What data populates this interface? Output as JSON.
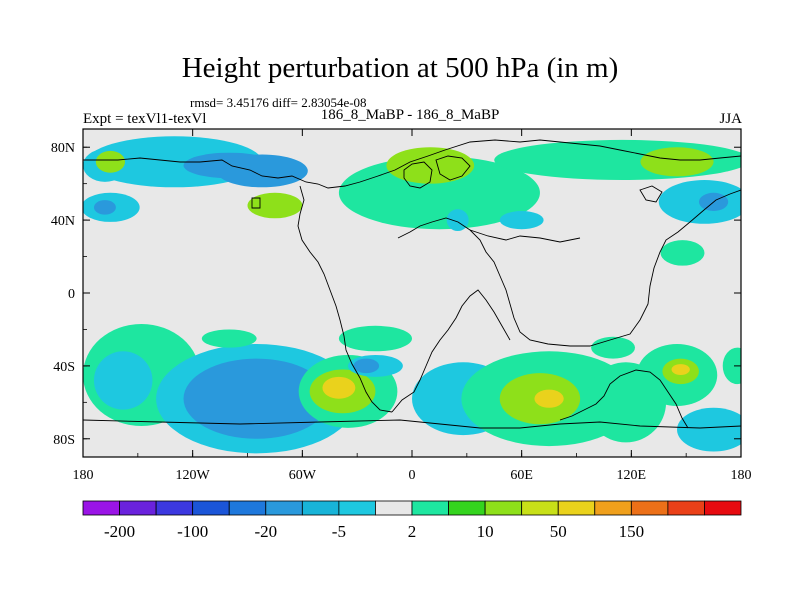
{
  "chart_data": {
    "type": "heatmap",
    "title": "Height perturbation at 500 hPa (in m)",
    "stats_text": "rmsd= 3.45176 diff= 2.83054e-08",
    "left_label": "Expt = texVl1-texVl",
    "center_label": "186_8_MaBP - 186_8_MaBP",
    "right_label": "JJA",
    "x_ticks": [
      "180",
      "120W",
      "60W",
      "0",
      "60E",
      "120E",
      "180"
    ],
    "x_tick_values": [
      -180,
      -120,
      -60,
      0,
      60,
      120,
      180
    ],
    "y_ticks": [
      "80N",
      "40N",
      "0",
      "40S",
      "80S"
    ],
    "y_tick_values": [
      80,
      40,
      0,
      -40,
      -80
    ],
    "xlim": [
      -180,
      180
    ],
    "ylim": [
      -90,
      90
    ],
    "colorbar": {
      "colors": [
        "#9a14e6",
        "#6a22dd",
        "#3c38e0",
        "#1b55d8",
        "#1e78dc",
        "#2a99dc",
        "#18b4d8",
        "#1ec8e0",
        "#e8e8e8",
        "#1ee6a0",
        "#34d41e",
        "#8ee01a",
        "#c8e018",
        "#ead21c",
        "#f0a01c",
        "#ec7018",
        "#ea4018",
        "#e60a10"
      ],
      "labels": [
        "-200",
        "-100",
        "-20",
        "-5",
        "2",
        "10",
        "50",
        "150"
      ],
      "label_after_box": [
        1,
        3,
        5,
        7,
        9,
        11,
        13,
        15
      ]
    },
    "regions": [
      {
        "lon": -130,
        "lat": 72,
        "rx": 48,
        "ry": 14,
        "level": "-5"
      },
      {
        "lon": -100,
        "lat": 70,
        "rx": 25,
        "ry": 7,
        "level": "-20"
      },
      {
        "lon": -82,
        "lat": 67,
        "rx": 25,
        "ry": 9,
        "level": "-20"
      },
      {
        "lon": -168,
        "lat": 70,
        "rx": 12,
        "ry": 9,
        "level": "-5"
      },
      {
        "lon": -165,
        "lat": 72,
        "rx": 8,
        "ry": 6,
        "level": "10"
      },
      {
        "lon": -165,
        "lat": 47,
        "rx": 16,
        "ry": 8,
        "level": "-5"
      },
      {
        "lon": -168,
        "lat": 47,
        "rx": 6,
        "ry": 4,
        "level": "-20"
      },
      {
        "lon": -75,
        "lat": 48,
        "rx": 15,
        "ry": 7,
        "level": "10"
      },
      {
        "lon": 15,
        "lat": 55,
        "rx": 55,
        "ry": 20,
        "level": "2"
      },
      {
        "lon": 10,
        "lat": 70,
        "rx": 24,
        "ry": 10,
        "level": "10"
      },
      {
        "lon": 115,
        "lat": 73,
        "rx": 70,
        "ry": 11,
        "level": "2"
      },
      {
        "lon": 145,
        "lat": 72,
        "rx": 20,
        "ry": 8,
        "level": "10"
      },
      {
        "lon": 160,
        "lat": 50,
        "rx": 25,
        "ry": 12,
        "level": "-5"
      },
      {
        "lon": 165,
        "lat": 50,
        "rx": 8,
        "ry": 5,
        "level": "-20"
      },
      {
        "lon": 148,
        "lat": 22,
        "rx": 12,
        "ry": 7,
        "level": "2"
      },
      {
        "lon": 25,
        "lat": 40,
        "rx": 6,
        "ry": 6,
        "level": "-5"
      },
      {
        "lon": 60,
        "lat": 40,
        "rx": 12,
        "ry": 5,
        "level": "-5"
      },
      {
        "lon": -148,
        "lat": -45,
        "rx": 32,
        "ry": 28,
        "level": "2"
      },
      {
        "lon": -158,
        "lat": -48,
        "rx": 16,
        "ry": 16,
        "level": "-5"
      },
      {
        "lon": -85,
        "lat": -58,
        "rx": 55,
        "ry": 30,
        "level": "-5"
      },
      {
        "lon": -85,
        "lat": -58,
        "rx": 40,
        "ry": 22,
        "level": "-20"
      },
      {
        "lon": -35,
        "lat": -54,
        "rx": 27,
        "ry": 20,
        "level": "2"
      },
      {
        "lon": -38,
        "lat": -54,
        "rx": 18,
        "ry": 12,
        "level": "10"
      },
      {
        "lon": -40,
        "lat": -52,
        "rx": 9,
        "ry": 6,
        "level": "50"
      },
      {
        "lon": -20,
        "lat": -25,
        "rx": 20,
        "ry": 7,
        "level": "2"
      },
      {
        "lon": -100,
        "lat": -25,
        "rx": 15,
        "ry": 5,
        "level": "2"
      },
      {
        "lon": -20,
        "lat": -40,
        "rx": 15,
        "ry": 6,
        "level": "-5"
      },
      {
        "lon": -25,
        "lat": -40,
        "rx": 7,
        "ry": 4,
        "level": "-20"
      },
      {
        "lon": 28,
        "lat": -58,
        "rx": 28,
        "ry": 20,
        "level": "-5"
      },
      {
        "lon": 75,
        "lat": -58,
        "rx": 48,
        "ry": 26,
        "level": "2"
      },
      {
        "lon": 70,
        "lat": -58,
        "rx": 22,
        "ry": 14,
        "level": "10"
      },
      {
        "lon": 75,
        "lat": -58,
        "rx": 8,
        "ry": 5,
        "level": "50"
      },
      {
        "lon": 117,
        "lat": -60,
        "rx": 22,
        "ry": 22,
        "level": "2"
      },
      {
        "lon": 145,
        "lat": -45,
        "rx": 22,
        "ry": 17,
        "level": "2"
      },
      {
        "lon": 147,
        "lat": -43,
        "rx": 10,
        "ry": 7,
        "level": "10"
      },
      {
        "lon": 147,
        "lat": -42,
        "rx": 5,
        "ry": 3,
        "level": "50"
      },
      {
        "lon": 165,
        "lat": -75,
        "rx": 20,
        "ry": 12,
        "level": "-5"
      },
      {
        "lon": 110,
        "lat": -30,
        "rx": 12,
        "ry": 6,
        "level": "2"
      },
      {
        "lon": 178,
        "lat": -40,
        "rx": 8,
        "ry": 10,
        "level": "2"
      }
    ]
  }
}
